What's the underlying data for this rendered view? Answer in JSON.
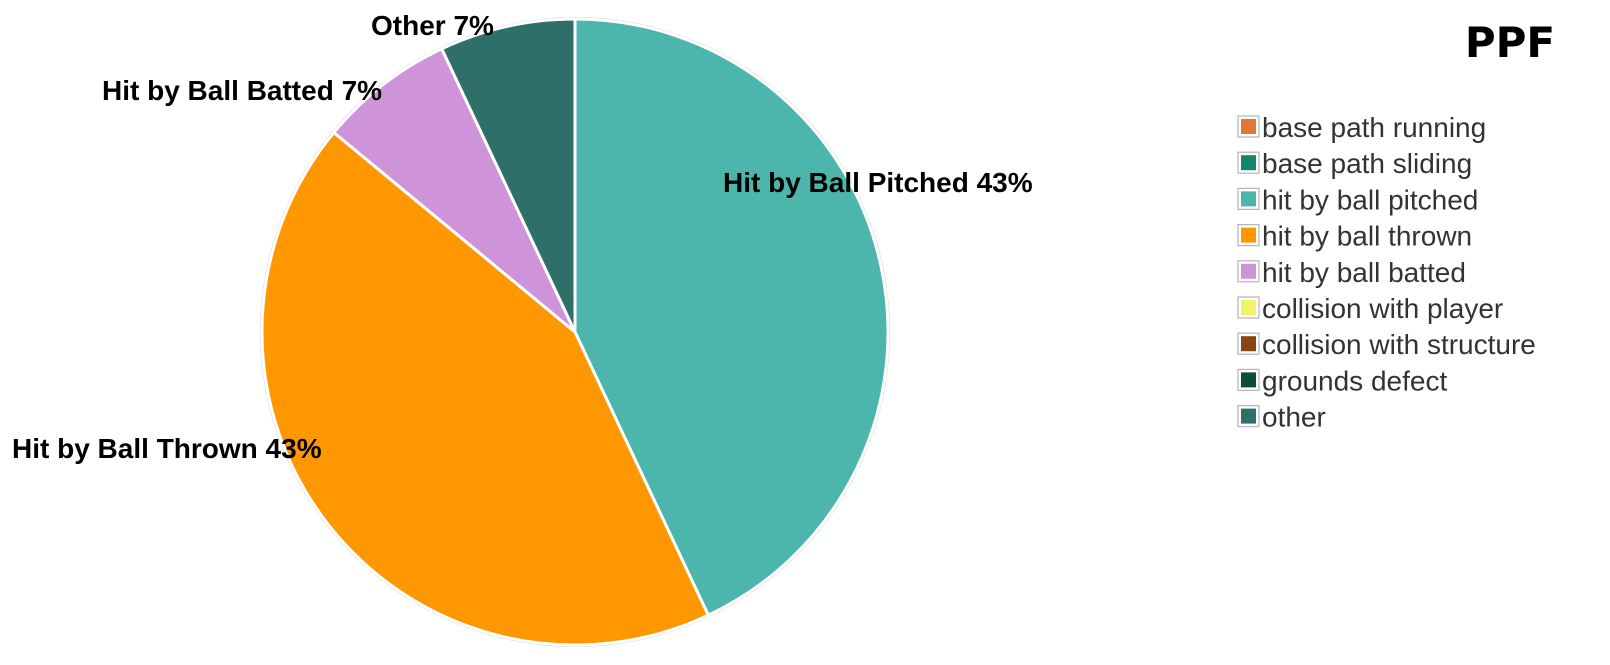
{
  "chart_data": {
    "type": "pie",
    "title": "PPF",
    "legend_position": "right",
    "slices": [
      {
        "name": "hit by ball pitched",
        "value": 43,
        "color": "#4db6ac",
        "label": "Hit by Ball Pitched 43%"
      },
      {
        "name": "hit by ball thrown",
        "value": 43,
        "color": "#ff9800",
        "label": "Hit by Ball Thrown 43%"
      },
      {
        "name": "hit by ball batted",
        "value": 7,
        "color": "#ce93d8",
        "label": "Hit by Ball Batted 7%"
      },
      {
        "name": "other",
        "value": 7,
        "color": "#2e6f69",
        "label": "Other 7%"
      }
    ],
    "legend": [
      {
        "label": "base path running",
        "color": "#e0783a"
      },
      {
        "label": "base path sliding",
        "color": "#13866f"
      },
      {
        "label": "hit by ball pitched",
        "color": "#4db6ac"
      },
      {
        "label": "hit by ball thrown",
        "color": "#ff9800"
      },
      {
        "label": "hit by ball batted",
        "color": "#ce93d8"
      },
      {
        "label": "collision with player",
        "color": "#f2f26b"
      },
      {
        "label": "collision with structure",
        "color": "#8b4513"
      },
      {
        "label": "grounds defect",
        "color": "#0b4d3c"
      },
      {
        "label": "other",
        "color": "#2e6f69"
      }
    ]
  }
}
